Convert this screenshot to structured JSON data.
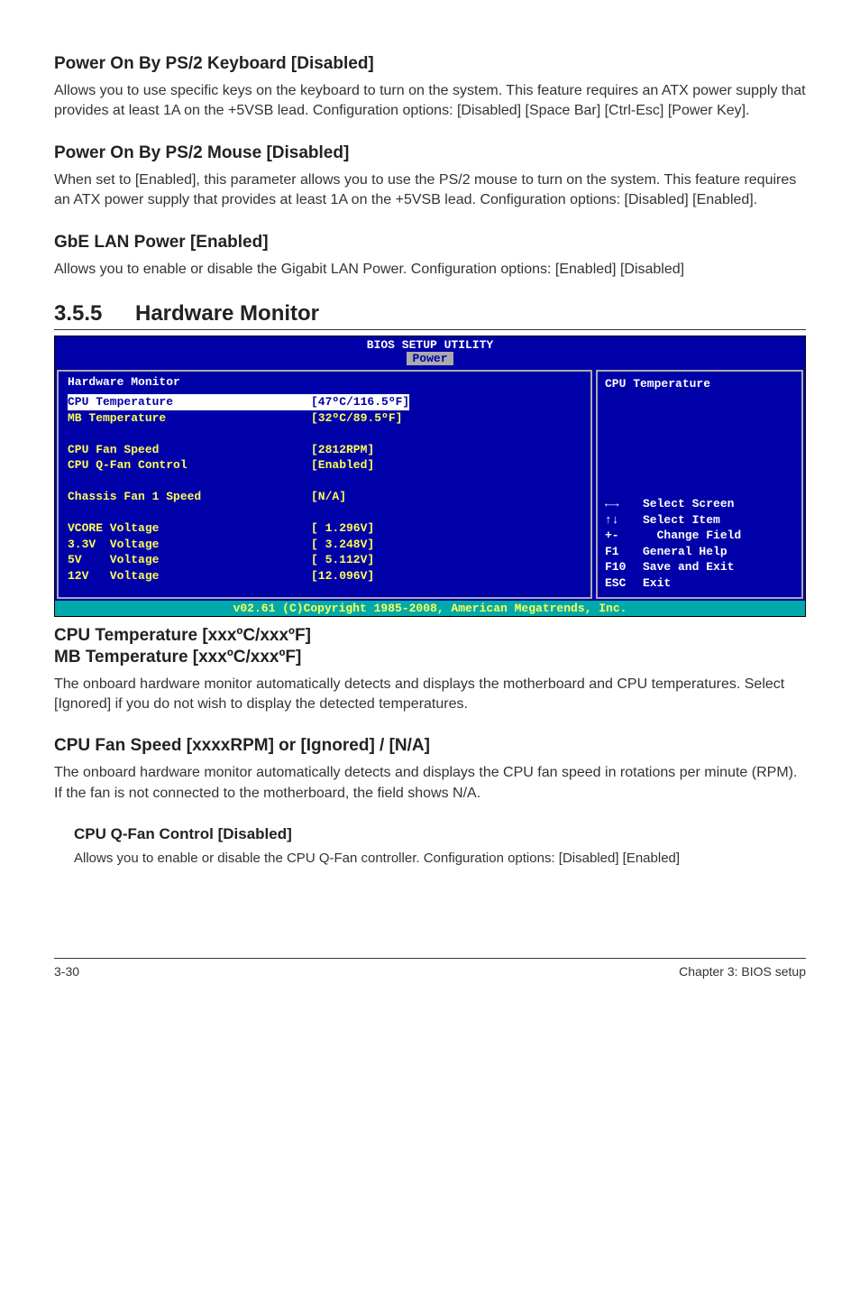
{
  "sections": {
    "ps2kb": {
      "title": "Power On By PS/2 Keyboard [Disabled]",
      "text": "Allows you to use specific keys on the keyboard to turn on the system. This feature requires an ATX power supply that provides at least 1A on the +5VSB lead. Configuration options: [Disabled] [Space Bar] [Ctrl-Esc] [Power Key]."
    },
    "ps2mouse": {
      "title": "Power On By PS/2 Mouse [Disabled]",
      "text": "When set to [Enabled], this parameter allows you to use the PS/2 mouse to turn on the system. This feature requires an ATX power supply that provides at least 1A on the +5VSB lead. Configuration options: [Disabled] [Enabled]."
    },
    "gbe": {
      "title": "GbE LAN Power [Enabled]",
      "text": "Allows you to enable or disable the Gigabit LAN Power. Configuration options: [Enabled] [Disabled]"
    }
  },
  "main_section": {
    "num": "3.5.5",
    "title": "Hardware Monitor"
  },
  "bios": {
    "title": "BIOS SETUP UTILITY",
    "tab": "Power",
    "section_header": "Hardware Monitor",
    "rows": [
      {
        "label": "CPU Temperature",
        "value": "[47ºC/116.5ºF]",
        "selected": true
      },
      {
        "label": "MB Temperature",
        "value": "[32ºC/89.5ºF]"
      },
      {
        "label": "",
        "value": ""
      },
      {
        "label": "CPU Fan Speed",
        "value": "[2812RPM]"
      },
      {
        "label": "CPU Q-Fan Control",
        "value": "[Enabled]"
      },
      {
        "label": "",
        "value": ""
      },
      {
        "label": "Chassis Fan 1 Speed",
        "value": "[N/A]"
      },
      {
        "label": "",
        "value": ""
      },
      {
        "label": "VCORE Voltage",
        "value": "[ 1.296V]"
      },
      {
        "label": "3.3V  Voltage",
        "value": "[ 3.248V]"
      },
      {
        "label": "5V    Voltage",
        "value": "[ 5.112V]"
      },
      {
        "label": "12V   Voltage",
        "value": "[12.096V]"
      }
    ],
    "help_title": "CPU Temperature",
    "help_keys": [
      {
        "key": "←→",
        "desc": "Select Screen"
      },
      {
        "key": "↑↓",
        "desc": "Select Item"
      },
      {
        "key": "+-",
        "desc": "  Change Field"
      },
      {
        "key": "F1",
        "desc": "General Help"
      },
      {
        "key": "F10",
        "desc": "Save and Exit"
      },
      {
        "key": "ESC",
        "desc": "Exit"
      }
    ],
    "footer": "v02.61 (C)Copyright 1985-2008, American Megatrends, Inc."
  },
  "post_bios": {
    "cpu_temp_h1": "CPU Temperature [xxxºC/xxxºF]",
    "mb_temp_h1": "MB Temperature [xxxºC/xxxºF]",
    "temp_text": "The onboard hardware monitor automatically detects and displays the motherboard and CPU temperatures. Select [Ignored] if you do not wish to display the detected temperatures.",
    "fan_h1": "CPU Fan Speed [xxxxRPM] or [Ignored] / [N/A]",
    "fan_text": "The onboard hardware monitor automatically detects and displays the CPU fan speed in rotations per minute (RPM). If the fan is not connected to the motherboard, the field shows N/A.",
    "qfan_h1": "CPU Q-Fan Control [Disabled]",
    "qfan_text": "Allows you to enable or disable the CPU Q-Fan controller. Configuration options: [Disabled] [Enabled]"
  },
  "footer": {
    "left": "3-30",
    "right": "Chapter 3: BIOS setup"
  },
  "colors": {
    "bios_bg": "#0000a8",
    "bios_yellow": "#ffff55",
    "bios_white": "#ffffff",
    "bios_gray": "#aaaaaa",
    "bios_teal": "#00aaaa"
  }
}
